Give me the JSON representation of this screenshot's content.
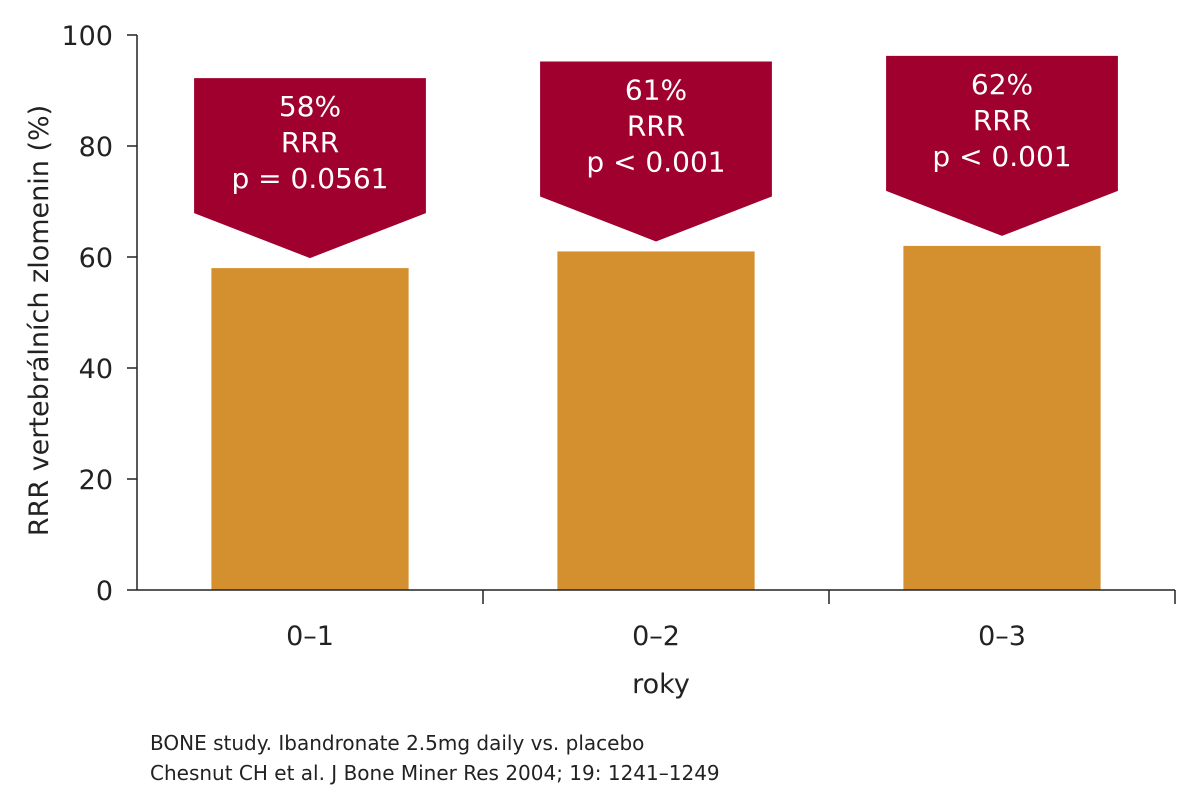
{
  "chart_data": {
    "type": "bar",
    "categories": [
      "0–1",
      "0–2",
      "0–3"
    ],
    "values": [
      58,
      61,
      62
    ],
    "xlabel": "roky",
    "ylabel": "RRR vertebrálních zlomenin (%)",
    "ylim": [
      0,
      100
    ],
    "yticks": [
      0,
      20,
      40,
      60,
      80,
      100
    ],
    "grid": false,
    "bar_color": "#d4902e",
    "annotations": [
      {
        "lines": [
          "58%",
          "RRR",
          "p = 0.0561"
        ]
      },
      {
        "lines": [
          "61%",
          "RRR",
          "p < 0.001"
        ]
      },
      {
        "lines": [
          "62%",
          "RRR",
          "p < 0.001"
        ]
      }
    ],
    "annotation_color": "#a0002e"
  },
  "source": {
    "line1": "BONE study. Ibandronate 2.5mg daily vs. placebo",
    "line2": "Chesnut CH et al. J Bone Miner Res 2004; 19: 1241–1249"
  }
}
